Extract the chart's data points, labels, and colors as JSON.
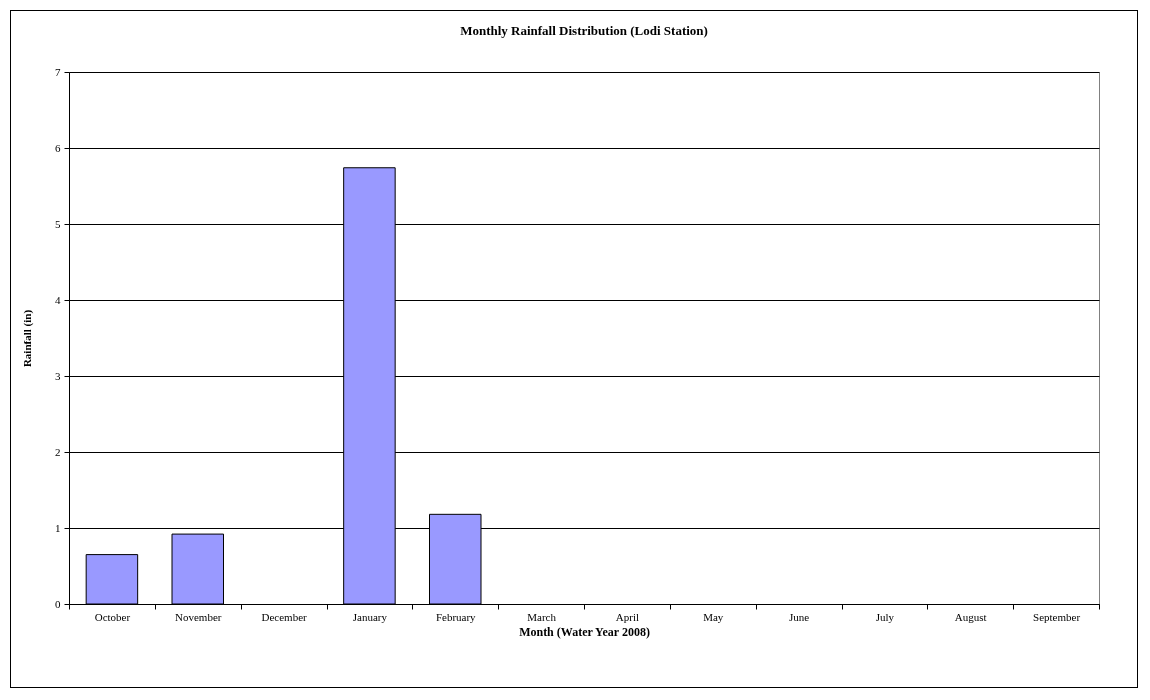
{
  "chart_data": {
    "type": "bar",
    "title": "Monthly Rainfall Distribution (Lodi Station)",
    "xlabel": "Month (Water Year 2008)",
    "ylabel": "Rainfall (in)",
    "categories": [
      "October",
      "November",
      "December",
      "January",
      "February",
      "March",
      "April",
      "May",
      "June",
      "July",
      "August",
      "September"
    ],
    "values": [
      0.65,
      0.92,
      null,
      5.74,
      1.18,
      null,
      null,
      null,
      null,
      null,
      null,
      null
    ],
    "color": "#9999ff",
    "ylim": [
      0,
      7
    ],
    "yticks": [
      0,
      1,
      2,
      3,
      4,
      5,
      6,
      7
    ],
    "grid": "y"
  }
}
